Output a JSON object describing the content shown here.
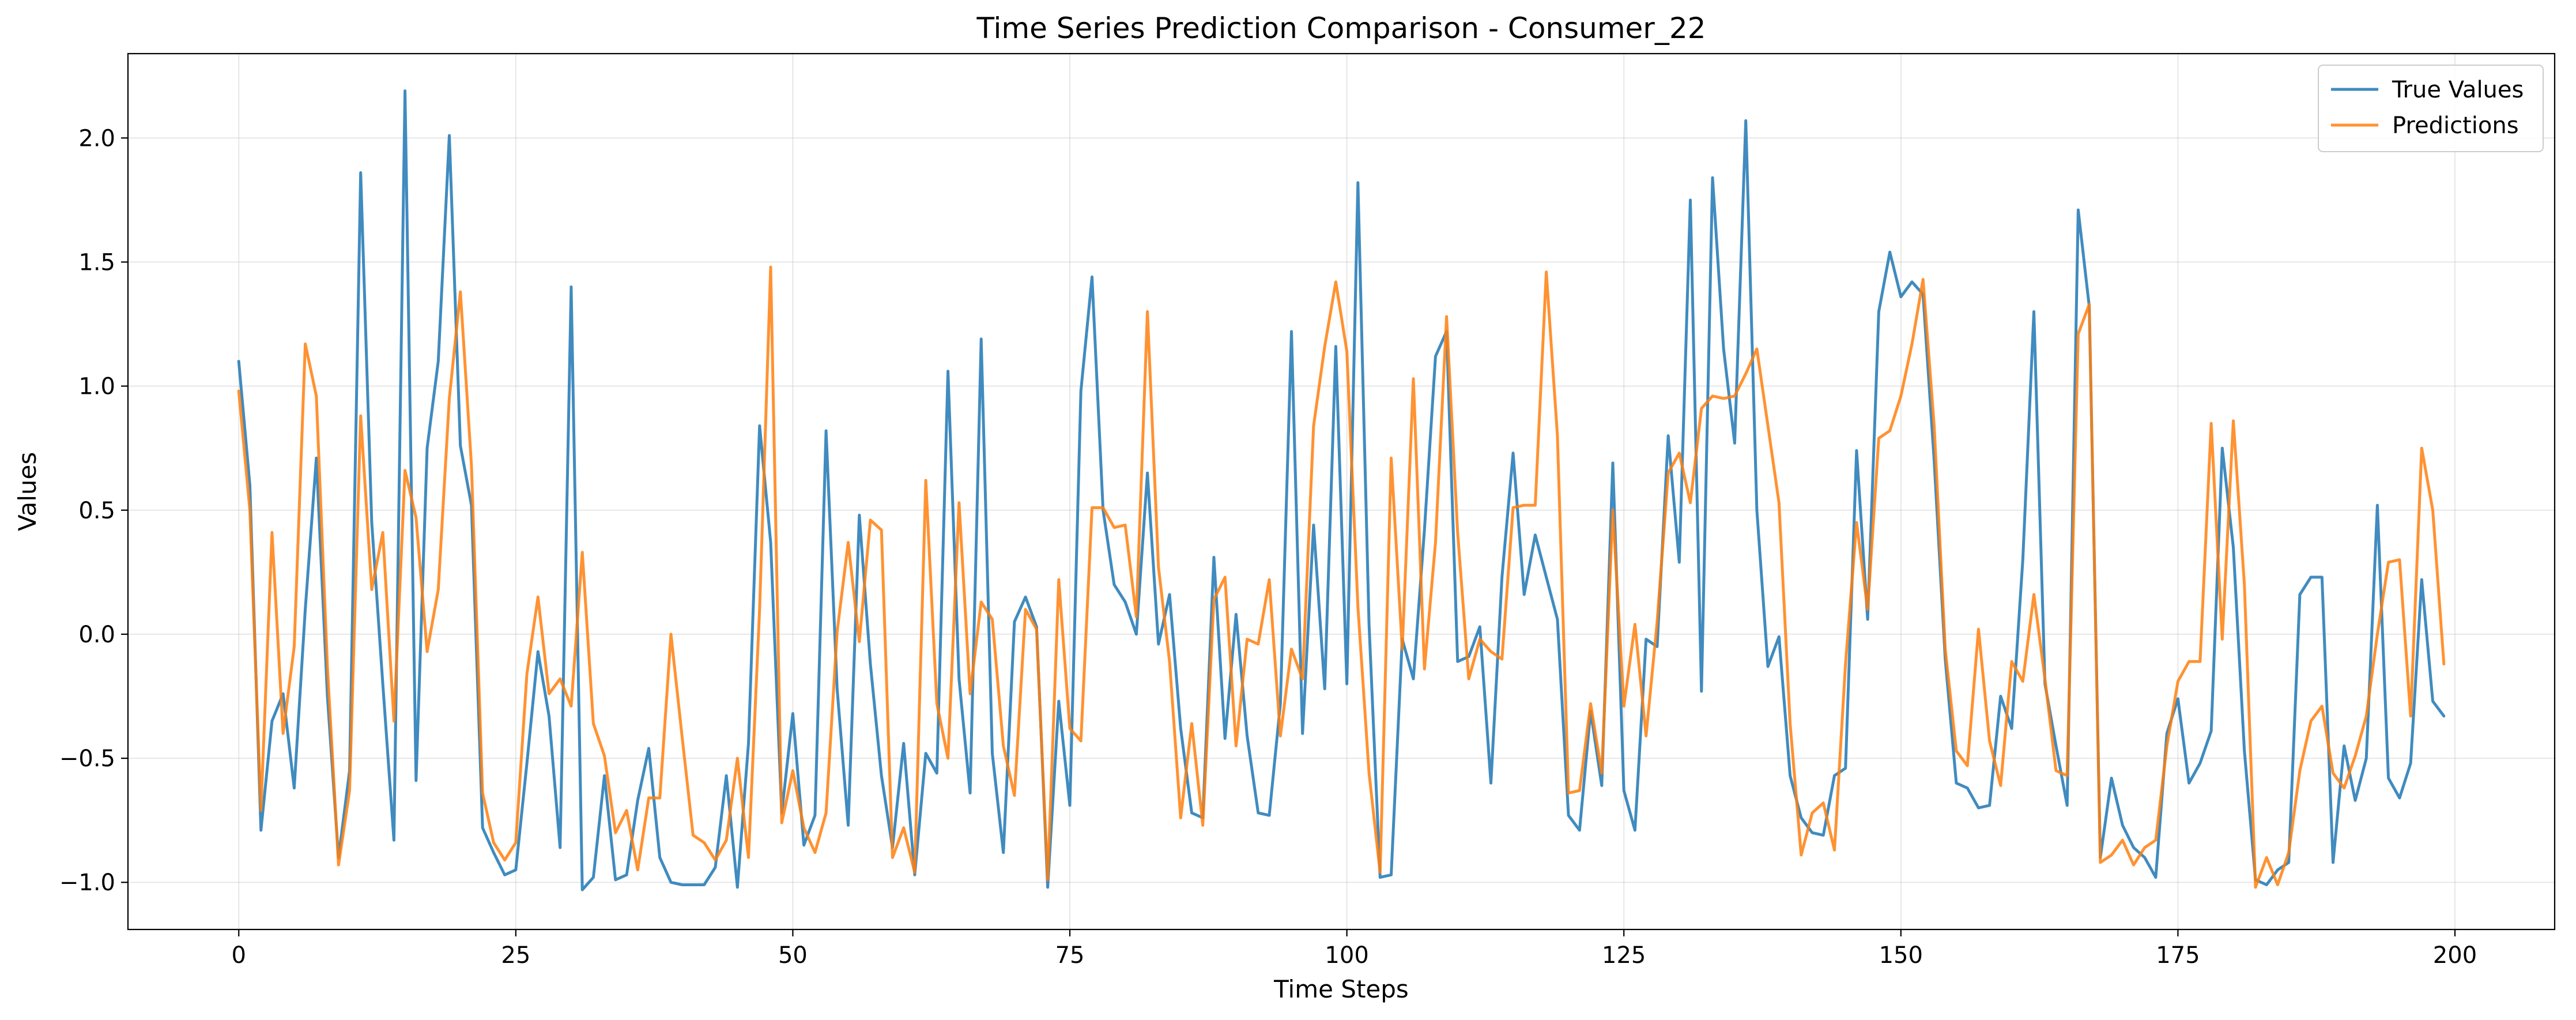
{
  "chart_data": {
    "type": "line",
    "title": "Time Series Prediction Comparison - Consumer_22",
    "xlabel": "Time Steps",
    "ylabel": "Values",
    "xlim": [
      -10,
      209
    ],
    "ylim": [
      -1.19,
      2.34
    ],
    "xticks": [
      0,
      25,
      50,
      75,
      100,
      125,
      150,
      175,
      200
    ],
    "yticks": [
      -1.0,
      -0.5,
      0.0,
      0.5,
      1.0,
      1.5,
      2.0
    ],
    "xtick_labels": [
      "0",
      "25",
      "50",
      "75",
      "100",
      "125",
      "150",
      "175",
      "200"
    ],
    "ytick_labels": [
      "−1.0",
      "−0.5",
      "0.0",
      "0.5",
      "1.0",
      "1.5",
      "2.0"
    ],
    "grid": true,
    "legend_position": "top-right",
    "x": [
      0,
      1,
      2,
      3,
      4,
      5,
      6,
      7,
      8,
      9,
      10,
      11,
      12,
      13,
      14,
      15,
      16,
      17,
      18,
      19,
      20,
      21,
      22,
      23,
      24,
      25,
      26,
      27,
      28,
      29,
      30,
      31,
      32,
      33,
      34,
      35,
      36,
      37,
      38,
      39,
      40,
      41,
      42,
      43,
      44,
      45,
      46,
      47,
      48,
      49,
      50,
      51,
      52,
      53,
      54,
      55,
      56,
      57,
      58,
      59,
      60,
      61,
      62,
      63,
      64,
      65,
      66,
      67,
      68,
      69,
      70,
      71,
      72,
      73,
      74,
      75,
      76,
      77,
      78,
      79,
      80,
      81,
      82,
      83,
      84,
      85,
      86,
      87,
      88,
      89,
      90,
      91,
      92,
      93,
      94,
      95,
      96,
      97,
      98,
      99,
      100,
      101,
      102,
      103,
      104,
      105,
      106,
      107,
      108,
      109,
      110,
      111,
      112,
      113,
      114,
      115,
      116,
      117,
      118,
      119,
      120,
      121,
      122,
      123,
      124,
      125,
      126,
      127,
      128,
      129,
      130,
      131,
      132,
      133,
      134,
      135,
      136,
      137,
      138,
      139,
      140,
      141,
      142,
      143,
      144,
      145,
      146,
      147,
      148,
      149,
      150,
      151,
      152,
      153,
      154,
      155,
      156,
      157,
      158,
      159,
      160,
      161,
      162,
      163,
      164,
      165,
      166,
      167,
      168,
      169,
      170,
      171,
      172,
      173,
      174,
      175,
      176,
      177,
      178,
      179,
      180,
      181,
      182,
      183,
      184,
      185,
      186,
      187,
      188,
      189,
      190,
      191,
      192,
      193,
      194,
      195,
      196,
      197,
      198,
      199
    ],
    "series": [
      {
        "name": "True Values",
        "color": "#1f77b4",
        "values": [
          1.1,
          0.6,
          -0.79,
          -0.35,
          -0.24,
          -0.62,
          0.1,
          0.71,
          -0.25,
          -0.9,
          -0.55,
          1.86,
          0.45,
          -0.2,
          -0.83,
          2.19,
          -0.59,
          0.75,
          1.1,
          2.01,
          0.76,
          0.52,
          -0.78,
          -0.88,
          -0.97,
          -0.95,
          -0.52,
          -0.07,
          -0.33,
          -0.86,
          1.4,
          -1.03,
          -0.98,
          -0.57,
          -0.99,
          -0.97,
          -0.67,
          -0.46,
          -0.9,
          -1.0,
          -1.01,
          -1.01,
          -1.01,
          -0.94,
          -0.57,
          -1.02,
          -0.44,
          0.84,
          0.37,
          -0.72,
          -0.32,
          -0.85,
          -0.73,
          0.82,
          -0.22,
          -0.77,
          0.48,
          -0.12,
          -0.57,
          -0.86,
          -0.44,
          -0.97,
          -0.48,
          -0.56,
          1.06,
          -0.18,
          -0.64,
          1.19,
          -0.48,
          -0.88,
          0.05,
          0.15,
          0.03,
          -1.02,
          -0.27,
          -0.69,
          0.98,
          1.44,
          0.5,
          0.2,
          0.13,
          0.0,
          0.65,
          -0.04,
          0.16,
          -0.38,
          -0.72,
          -0.74,
          0.31,
          -0.42,
          0.08,
          -0.41,
          -0.72,
          -0.73,
          -0.28,
          1.22,
          -0.4,
          0.44,
          -0.22,
          1.16,
          -0.2,
          1.82,
          0.04,
          -0.98,
          -0.97,
          -0.02,
          -0.18,
          0.42,
          1.12,
          1.22,
          -0.11,
          -0.09,
          0.03,
          -0.6,
          0.23,
          0.73,
          0.16,
          0.4,
          0.23,
          0.06,
          -0.73,
          -0.79,
          -0.31,
          -0.61,
          0.69,
          -0.63,
          -0.79,
          -0.02,
          -0.05,
          0.8,
          0.29,
          1.75,
          -0.23,
          1.84,
          1.15,
          0.77,
          2.07,
          0.5,
          -0.13,
          -0.01,
          -0.57,
          -0.74,
          -0.8,
          -0.81,
          -0.57,
          -0.54,
          0.74,
          0.06,
          1.3,
          1.54,
          1.36,
          1.42,
          1.37,
          0.7,
          -0.1,
          -0.6,
          -0.62,
          -0.7,
          -0.69,
          -0.25,
          -0.38,
          0.3,
          1.3,
          -0.2,
          -0.45,
          -0.69,
          1.71,
          1.32,
          -0.9,
          -0.58,
          -0.77,
          -0.86,
          -0.9,
          -0.98,
          -0.4,
          -0.26,
          -0.6,
          -0.52,
          -0.39,
          0.75,
          0.35,
          -0.47,
          -0.99,
          -1.01,
          -0.95,
          -0.92,
          0.16,
          0.23,
          0.23,
          -0.92,
          -0.45,
          -0.67,
          -0.5,
          0.52,
          -0.58,
          -0.66,
          -0.52,
          0.22,
          -0.27,
          -0.33
        ]
      },
      {
        "name": "Predictions",
        "color": "#ff7f0e",
        "values": [
          0.98,
          0.5,
          -0.71,
          0.41,
          -0.4,
          -0.05,
          1.17,
          0.96,
          -0.13,
          -0.93,
          -0.63,
          0.88,
          0.18,
          0.41,
          -0.35,
          0.66,
          0.47,
          -0.07,
          0.18,
          0.95,
          1.38,
          0.68,
          -0.64,
          -0.84,
          -0.91,
          -0.84,
          -0.16,
          0.15,
          -0.24,
          -0.18,
          -0.29,
          0.33,
          -0.36,
          -0.49,
          -0.8,
          -0.71,
          -0.95,
          -0.66,
          -0.66,
          0.0,
          -0.41,
          -0.81,
          -0.84,
          -0.91,
          -0.83,
          -0.5,
          -0.9,
          0.1,
          1.48,
          -0.76,
          -0.55,
          -0.78,
          -0.88,
          -0.72,
          0.01,
          0.37,
          -0.03,
          0.46,
          0.42,
          -0.9,
          -0.78,
          -0.96,
          0.62,
          -0.28,
          -0.5,
          0.53,
          -0.24,
          0.13,
          0.06,
          -0.45,
          -0.65,
          0.1,
          0.02,
          -0.99,
          0.22,
          -0.38,
          -0.43,
          0.51,
          0.51,
          0.43,
          0.44,
          0.07,
          1.3,
          0.27,
          -0.11,
          -0.74,
          -0.36,
          -0.77,
          0.14,
          0.23,
          -0.45,
          -0.02,
          -0.04,
          0.22,
          -0.41,
          -0.06,
          -0.18,
          0.84,
          1.16,
          1.42,
          1.14,
          0.11,
          -0.56,
          -0.96,
          0.71,
          -0.06,
          1.03,
          -0.14,
          0.37,
          1.28,
          0.41,
          -0.18,
          -0.02,
          -0.07,
          -0.1,
          0.51,
          0.52,
          0.52,
          1.46,
          0.8,
          -0.64,
          -0.63,
          -0.28,
          -0.56,
          0.5,
          -0.29,
          0.04,
          -0.41,
          0.05,
          0.65,
          0.73,
          0.53,
          0.91,
          0.96,
          0.95,
          0.96,
          1.05,
          1.15,
          0.84,
          0.53,
          -0.36,
          -0.89,
          -0.72,
          -0.68,
          -0.87,
          -0.12,
          0.45,
          0.1,
          0.79,
          0.82,
          0.96,
          1.17,
          1.43,
          0.84,
          -0.06,
          -0.47,
          -0.53,
          0.02,
          -0.43,
          -0.61,
          -0.11,
          -0.19,
          0.16,
          -0.18,
          -0.55,
          -0.57,
          1.21,
          1.33,
          -0.92,
          -0.89,
          -0.83,
          -0.93,
          -0.86,
          -0.83,
          -0.45,
          -0.19,
          -0.11,
          -0.11,
          0.85,
          -0.02,
          0.86,
          0.2,
          -1.02,
          -0.9,
          -1.01,
          -0.88,
          -0.55,
          -0.35,
          -0.29,
          -0.56,
          -0.62,
          -0.49,
          -0.33,
          0.0,
          0.29,
          0.3,
          -0.33,
          0.75,
          0.5,
          -0.12
        ]
      }
    ]
  }
}
